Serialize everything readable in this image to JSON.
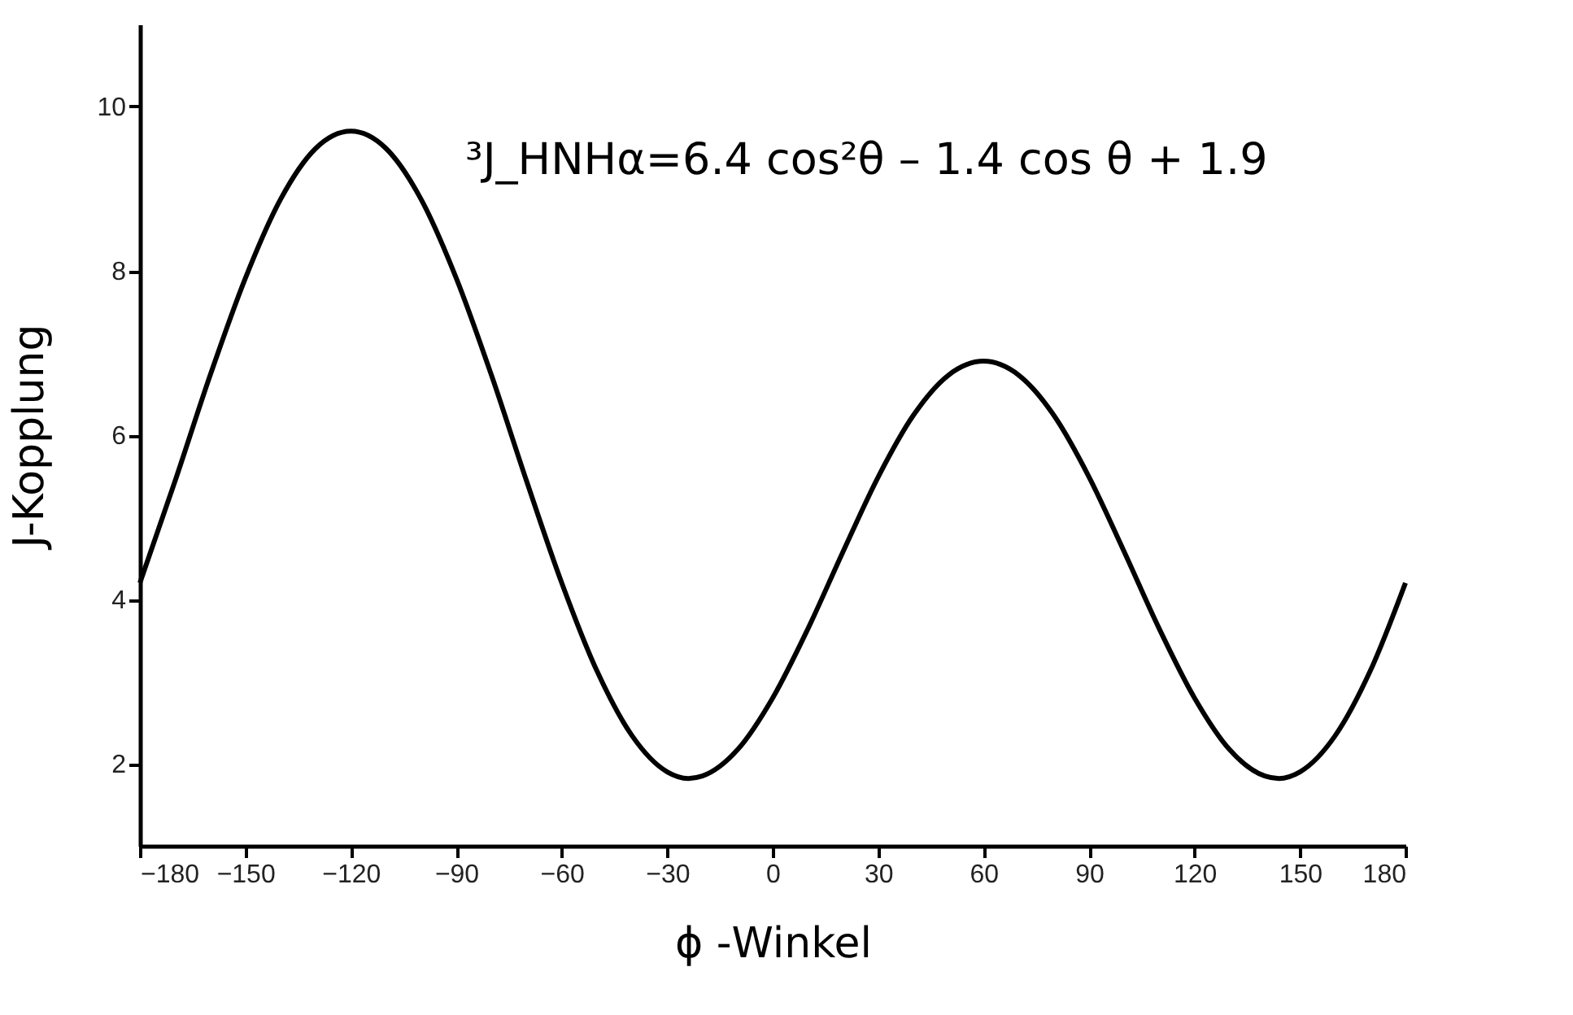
{
  "chart_data": {
    "type": "line",
    "xlabel": "ϕ -Winkel",
    "ylabel": "J-Kopplung",
    "annotations": [
      "³J_HNHα=6.4 cos²θ – 1.4 cos θ + 1.9"
    ],
    "x": [
      -180,
      -170,
      -160,
      -150,
      -140,
      -130,
      -120,
      -110,
      -100,
      -90,
      -80,
      -70,
      -60,
      -50,
      -40,
      -30,
      -24,
      -20,
      -10,
      0,
      10,
      20,
      30,
      40,
      50,
      60,
      70,
      80,
      90,
      100,
      110,
      120,
      130,
      140,
      144,
      150,
      160,
      170,
      180
    ],
    "series": [
      {
        "color": "#000000",
        "values": [
          4.2,
          5.44,
          6.73,
          7.91,
          8.87,
          9.49,
          9.7,
          9.49,
          8.87,
          7.91,
          6.73,
          5.44,
          4.2,
          3.13,
          2.34,
          1.9,
          1.82,
          1.85,
          2.17,
          2.8,
          3.64,
          4.58,
          5.49,
          6.24,
          6.73,
          6.9,
          6.73,
          6.24,
          5.49,
          4.58,
          3.64,
          2.8,
          2.17,
          1.85,
          1.82,
          1.9,
          2.34,
          3.13,
          4.2
        ]
      }
    ],
    "xlim": [
      -180,
      180
    ],
    "xticks": [
      -180,
      -150,
      -120,
      -90,
      -60,
      -30,
      0,
      30,
      60,
      90,
      120,
      150,
      180
    ],
    "ylim": [
      1,
      11
    ],
    "yticks": [
      2,
      4,
      6,
      8,
      10
    ],
    "grid": false,
    "marker": "none",
    "line_style": "solid"
  }
}
